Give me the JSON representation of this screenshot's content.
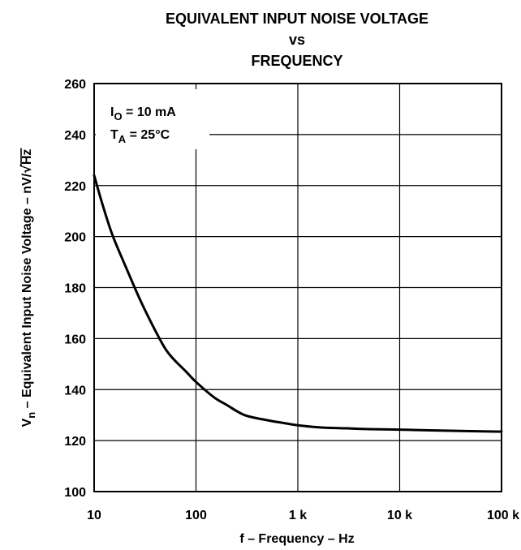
{
  "chart_data": {
    "type": "line",
    "title_lines": [
      "EQUIVALENT INPUT NOISE VOLTAGE",
      "vs",
      "FREQUENCY"
    ],
    "xlabel": "f – Frequency – Hz",
    "ylabel_prefix": "V",
    "ylabel_sub": "n",
    "ylabel_suffix": " – Equivalent Input Noise Voltage – nV/",
    "ylabel_sqrt": "Hz",
    "xscale": "log",
    "xlim": [
      10,
      100000
    ],
    "ylim": [
      100,
      260
    ],
    "x_ticks": [
      10,
      100,
      1000,
      10000,
      100000
    ],
    "x_tick_labels": [
      "10",
      "100",
      "1 k",
      "10 k",
      "100 k"
    ],
    "y_ticks": [
      100,
      120,
      140,
      160,
      180,
      200,
      220,
      240,
      260
    ],
    "y_tick_labels": [
      "100",
      "120",
      "140",
      "160",
      "180",
      "200",
      "220",
      "240",
      "260"
    ],
    "grid": true,
    "annotations": [
      {
        "main": "I",
        "sub": "O",
        "rest": " = 10 mA"
      },
      {
        "main": "T",
        "sub": "A",
        "rest": " = 25°C"
      }
    ],
    "series": [
      {
        "x": [
          10,
          12,
          15,
          20,
          25,
          30,
          40,
          50,
          60,
          80,
          100,
          150,
          200,
          300,
          500,
          700,
          1000,
          1500,
          2000,
          3000,
          5000,
          10000,
          20000,
          50000,
          100000
        ],
        "y": [
          224,
          213,
          201,
          189,
          180,
          173,
          163,
          156,
          152,
          147,
          143,
          137,
          134,
          130,
          128,
          127,
          126,
          125.3,
          125,
          124.8,
          124.5,
          124.3,
          124,
          123.7,
          123.5
        ]
      }
    ]
  }
}
